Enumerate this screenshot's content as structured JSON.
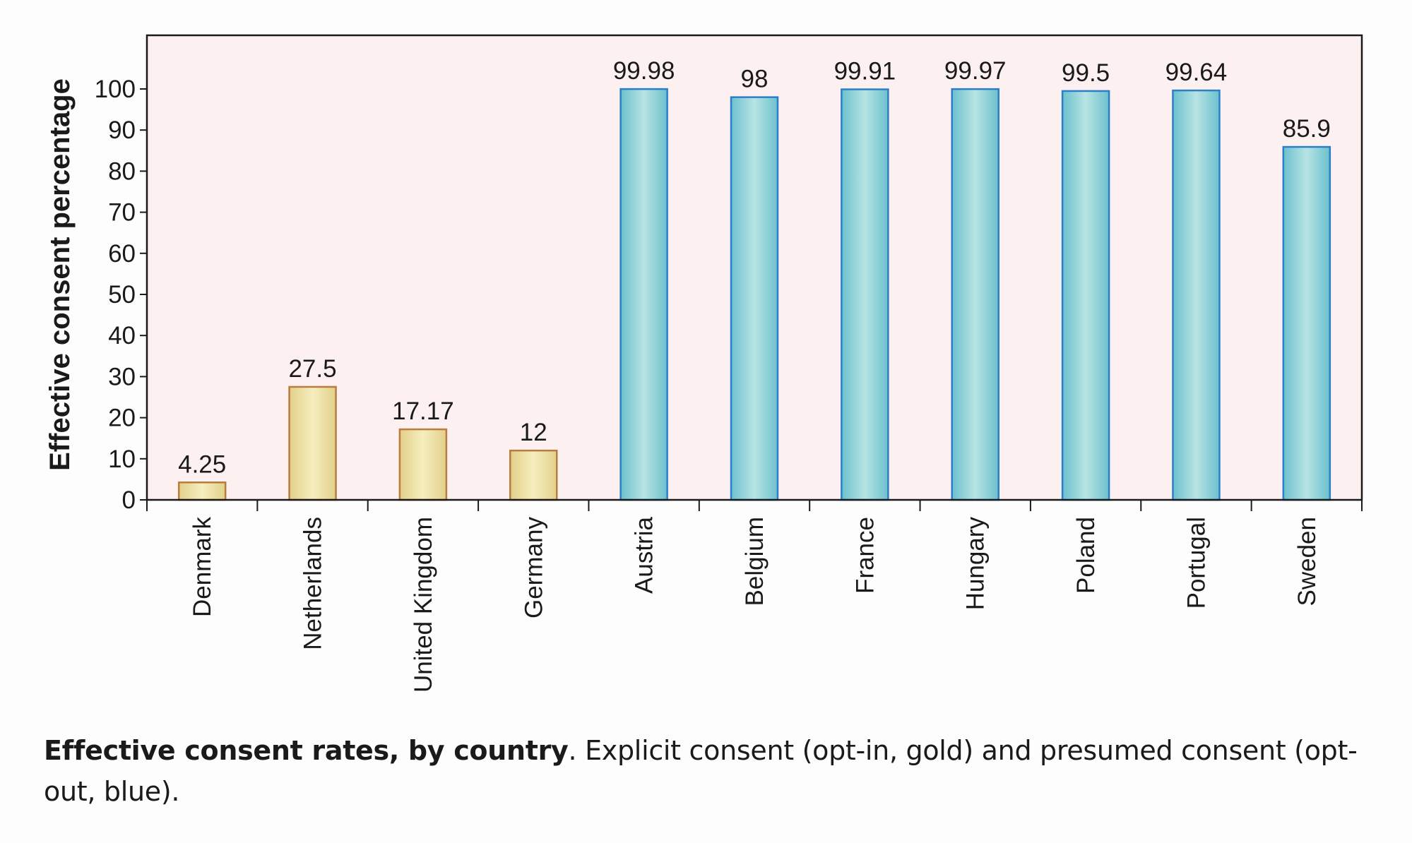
{
  "chart_data": {
    "type": "bar",
    "categories": [
      "Denmark",
      "Netherlands",
      "United Kingdom",
      "Germany",
      "Austria",
      "Belgium",
      "France",
      "Hungary",
      "Poland",
      "Portugal",
      "Sweden"
    ],
    "values": [
      4.25,
      27.5,
      17.17,
      12,
      99.98,
      98,
      99.91,
      99.97,
      99.5,
      99.64,
      85.9
    ],
    "value_labels": [
      "4.25",
      "27.5",
      "17.17",
      "12",
      "99.98",
      "98",
      "99.91",
      "99.97",
      "99.5",
      "99.64",
      "85.9"
    ],
    "groups": [
      "opt-in",
      "opt-in",
      "opt-in",
      "opt-in",
      "opt-out",
      "opt-out",
      "opt-out",
      "opt-out",
      "opt-out",
      "opt-out",
      "opt-out"
    ],
    "group_colors": {
      "opt-in": {
        "fill_light": "#f6eebf",
        "fill_dark": "#e2d08a",
        "stroke": "#b87c3e"
      },
      "opt-out": {
        "fill_light": "#b7e4e2",
        "fill_dark": "#6cc0cf",
        "stroke": "#2a7fc8"
      }
    },
    "ylabel": "Effective consent percentage",
    "xlabel": "",
    "ylim": [
      0,
      100
    ],
    "yticks": [
      0,
      10,
      20,
      30,
      40,
      50,
      60,
      70,
      80,
      90,
      100
    ],
    "plot_background": "#fdf0f0",
    "grid": false,
    "legend": "none"
  },
  "caption": {
    "title": "Effective consent rates, by country",
    "text": ". Explicit consent (opt-in, gold) and presumed consent (opt-out, blue)."
  }
}
